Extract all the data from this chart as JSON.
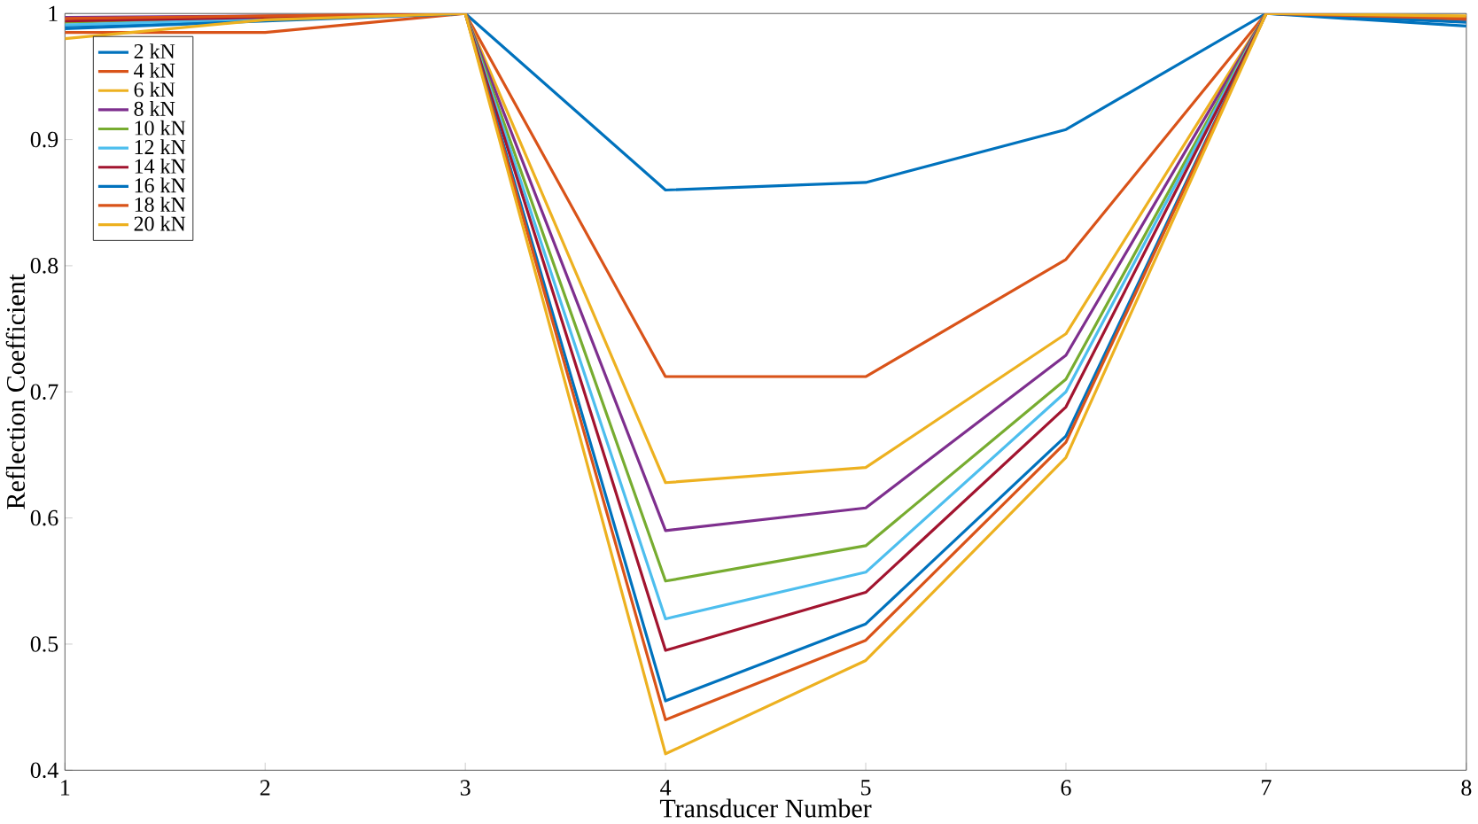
{
  "chart_data": {
    "type": "line",
    "xlabel": "Transducer Number",
    "ylabel": "Reflection Coefficient",
    "x": [
      1,
      2,
      3,
      4,
      5,
      6,
      7,
      8
    ],
    "xlim": [
      1,
      8
    ],
    "ylim": [
      0.4,
      1
    ],
    "xticks": [
      1,
      2,
      3,
      4,
      5,
      6,
      7,
      8
    ],
    "yticks": [
      0.4,
      0.5,
      0.6,
      0.7,
      0.8,
      0.9,
      1
    ],
    "legend": "top left",
    "grid": false,
    "marker": "none",
    "line_style": "solid",
    "series": [
      {
        "name": "2 kN",
        "color": "#0072bd",
        "values": [
          0.99,
          null,
          1,
          0.86,
          0.866,
          0.908,
          1,
          0.99
        ]
      },
      {
        "name": "4 kN",
        "color": "#d95319",
        "values": [
          0.985,
          0.985,
          1,
          0.712,
          0.712,
          0.805,
          1,
          0.995
        ]
      },
      {
        "name": "6 kN",
        "color": "#edb120",
        "values": [
          0.995,
          0.998,
          1,
          0.628,
          0.64,
          0.746,
          1,
          0.998
        ]
      },
      {
        "name": "8 kN",
        "color": "#7e2f8e",
        "values": [
          0.997,
          0.998,
          1,
          0.59,
          0.608,
          0.729,
          1,
          0.996
        ]
      },
      {
        "name": "10 kN",
        "color": "#77ac30",
        "values": [
          0.993,
          0.997,
          1,
          0.55,
          0.578,
          0.71,
          1,
          0.997
        ]
      },
      {
        "name": "12 kN",
        "color": "#4dbeee",
        "values": [
          0.991,
          null,
          1,
          0.52,
          0.557,
          0.7,
          1,
          0.997
        ]
      },
      {
        "name": "14 kN",
        "color": "#a2142f",
        "values": [
          0.994,
          0.997,
          1,
          0.495,
          0.541,
          0.688,
          1,
          0.997
        ]
      },
      {
        "name": "16 kN",
        "color": "#0072bd",
        "values": [
          0.988,
          null,
          1,
          0.455,
          0.516,
          0.665,
          1,
          0.993
        ]
      },
      {
        "name": "18 kN",
        "color": "#d95319",
        "values": [
          0.996,
          0.998,
          1,
          0.44,
          0.503,
          0.66,
          1,
          0.996
        ]
      },
      {
        "name": "20 kN",
        "color": "#edb120",
        "values": [
          0.98,
          0.995,
          1,
          0.413,
          0.487,
          0.648,
          1,
          0.998
        ]
      }
    ]
  }
}
